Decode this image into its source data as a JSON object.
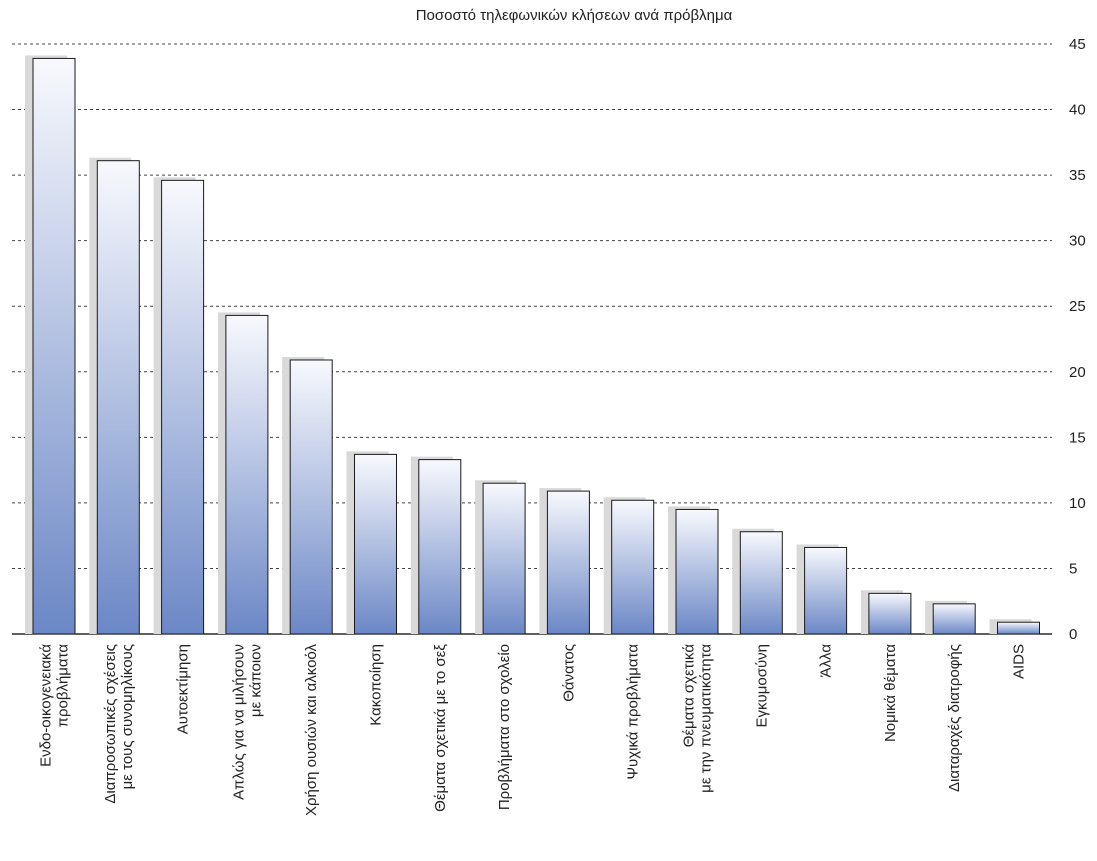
{
  "chart_data": {
    "type": "bar",
    "title": "Ποσοστό τηλεφωνικών κλήσεων ανά πρόβλημα",
    "xlabel": "",
    "ylabel": "",
    "ylim": [
      0,
      45
    ],
    "y_ticks": [
      0,
      5,
      10,
      15,
      20,
      25,
      30,
      35,
      40,
      45
    ],
    "y_axis_side": "right",
    "grid": true,
    "categories": [
      [
        "Ενδο-οικογενειακά",
        "προβλήματα"
      ],
      [
        "Διαπροσωπικές σχέσεις",
        "με τους συνομηλίκους"
      ],
      [
        "Αυτοεκτίμηση"
      ],
      [
        "Απλώς για να μιλήσουν",
        "με κάποιον"
      ],
      [
        "Χρήση ουσιών και αλκοόλ"
      ],
      [
        "Κακοποίηση"
      ],
      [
        "Θέματα σχετικά με το σεξ"
      ],
      [
        "Προβλήματα στο σχολείο"
      ],
      [
        "Θάνατος"
      ],
      [
        "Ψυχικά προβλήματα"
      ],
      [
        "Θέματα σχετικά",
        "με την πνευματικότητα"
      ],
      [
        "Εγκυμοσύνη"
      ],
      [
        "Άλλα"
      ],
      [
        "Νομικά θέματα"
      ],
      [
        "Διαταραχές διατροφής"
      ],
      [
        "AIDS"
      ]
    ],
    "values": [
      43.9,
      36.1,
      34.6,
      24.3,
      20.9,
      13.7,
      13.3,
      11.5,
      10.9,
      10.2,
      9.5,
      7.8,
      6.6,
      3.1,
      2.3,
      0.9
    ],
    "bar_gradient": {
      "top": "#f8f9fd",
      "bottom": "#6b87c6"
    }
  }
}
